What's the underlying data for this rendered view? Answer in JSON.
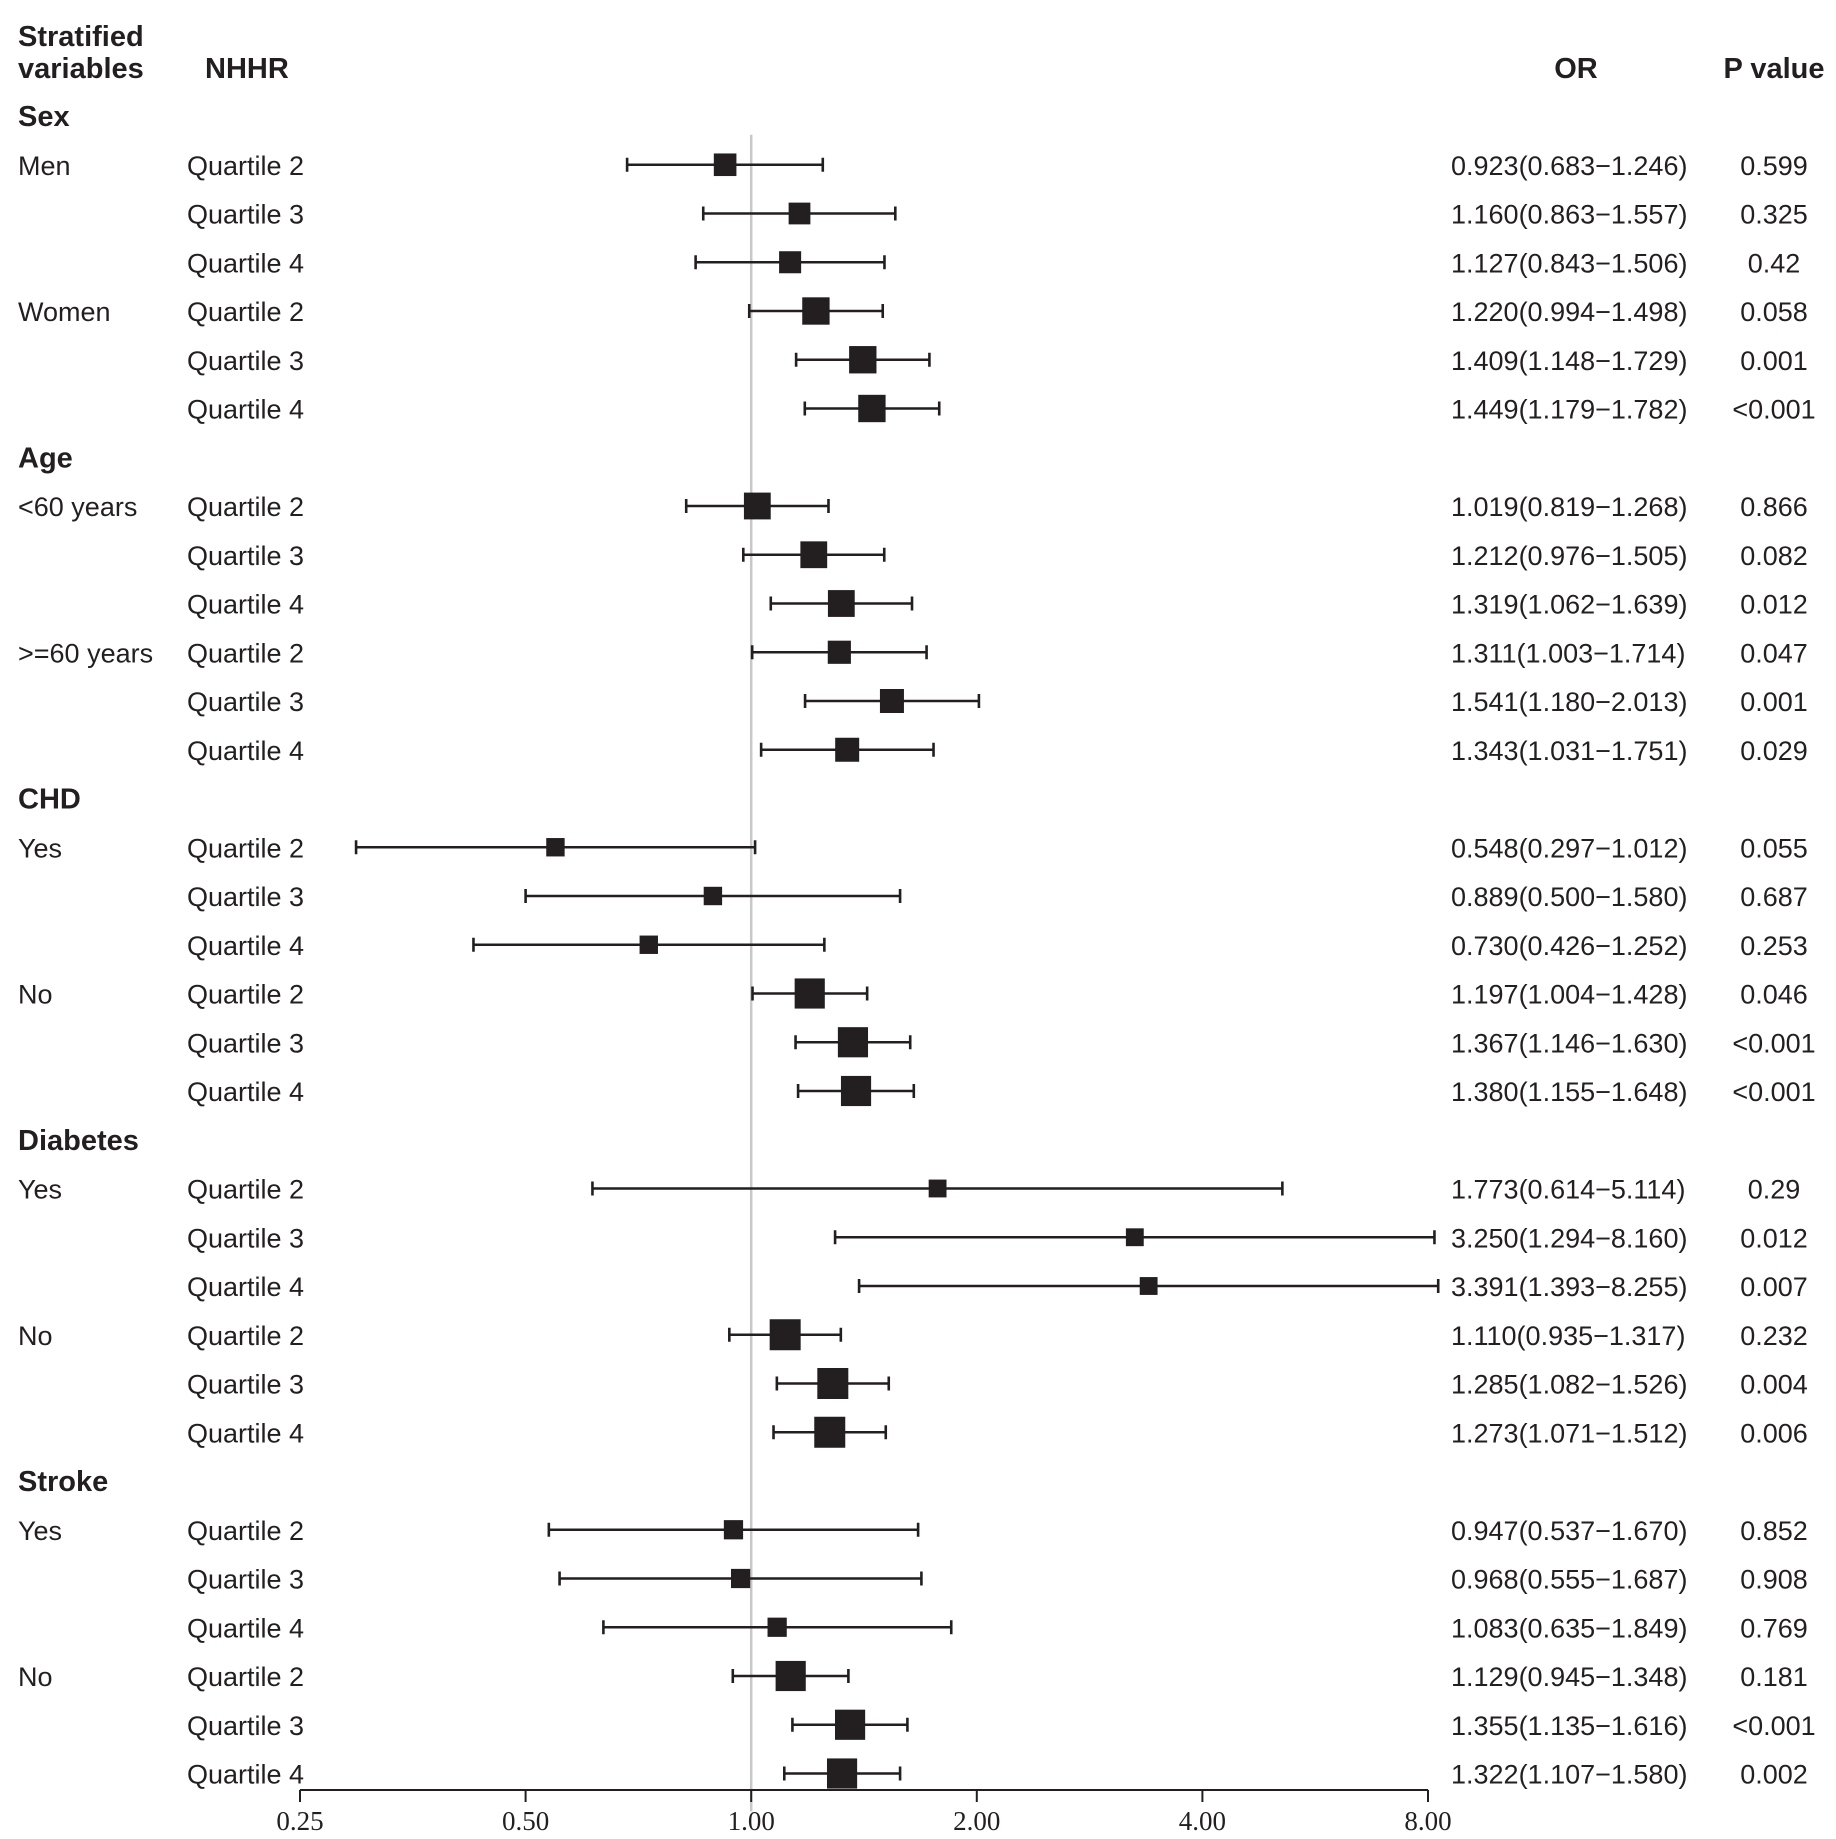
{
  "header": {
    "col1": [
      "Stratified",
      "variables"
    ],
    "col2": "NHHR",
    "col3": "OR",
    "col4": "P value"
  },
  "colors": {
    "marker": "#231f20",
    "reference_line": "#c8c8c8",
    "text": "#231f20"
  },
  "chart_data": {
    "type": "forest",
    "x_scale": "log2",
    "xlim": [
      0.25,
      8.0
    ],
    "x_ticks": [
      "0.25",
      "0.50",
      "1.00",
      "2.00",
      "4.00",
      "8.00"
    ],
    "x_tick_values": [
      0.25,
      0.5,
      1.0,
      2.0,
      4.0,
      8.0
    ],
    "reference_line": 1.0,
    "groups": [
      {
        "label": "Sex",
        "subgroups": [
          {
            "label": "Men",
            "rows": [
              {
                "label": "Quartile 2",
                "or": 0.923,
                "lo": 0.683,
                "hi": 1.246,
                "ci_text": "0.923(0.683−1.246)",
                "p": "0.599",
                "weight": 0.45
              },
              {
                "label": "Quartile 3",
                "or": 1.16,
                "lo": 0.863,
                "hi": 1.557,
                "ci_text": "1.160(0.863−1.557)",
                "p": "0.325",
                "weight": 0.42
              },
              {
                "label": "Quartile 4",
                "or": 1.127,
                "lo": 0.843,
                "hi": 1.506,
                "ci_text": "1.127(0.843−1.506)",
                "p": "0.42",
                "weight": 0.43
              }
            ]
          },
          {
            "label": "Women",
            "rows": [
              {
                "label": "Quartile 2",
                "or": 1.22,
                "lo": 0.994,
                "hi": 1.498,
                "ci_text": "1.220(0.994−1.498)",
                "p": "0.058",
                "weight": 0.62
              },
              {
                "label": "Quartile 3",
                "or": 1.409,
                "lo": 1.148,
                "hi": 1.729,
                "ci_text": "1.409(1.148−1.729)",
                "p": "0.001",
                "weight": 0.62
              },
              {
                "label": "Quartile 4",
                "or": 1.449,
                "lo": 1.179,
                "hi": 1.782,
                "ci_text": "1.449(1.179−1.782)",
                "p": "<0.001",
                "weight": 0.62
              }
            ]
          }
        ]
      },
      {
        "label": "Age",
        "subgroups": [
          {
            "label": "<60 years",
            "rows": [
              {
                "label": "Quartile 2",
                "or": 1.019,
                "lo": 0.819,
                "hi": 1.268,
                "ci_text": "1.019(0.819−1.268)",
                "p": "0.866",
                "weight": 0.6
              },
              {
                "label": "Quartile 3",
                "or": 1.212,
                "lo": 0.976,
                "hi": 1.505,
                "ci_text": "1.212(0.976−1.505)",
                "p": "0.082",
                "weight": 0.6
              },
              {
                "label": "Quartile 4",
                "or": 1.319,
                "lo": 1.062,
                "hi": 1.639,
                "ci_text": "1.319(1.062−1.639)",
                "p": "0.012",
                "weight": 0.6
              }
            ]
          },
          {
            "label": ">=60 years",
            "rows": [
              {
                "label": "Quartile 2",
                "or": 1.311,
                "lo": 1.003,
                "hi": 1.714,
                "ci_text": "1.311(1.003−1.714)",
                "p": "0.047",
                "weight": 0.47
              },
              {
                "label": "Quartile 3",
                "or": 1.541,
                "lo": 1.18,
                "hi": 2.013,
                "ci_text": "1.541(1.180−2.013)",
                "p": "0.001",
                "weight": 0.5
              },
              {
                "label": "Quartile 4",
                "or": 1.343,
                "lo": 1.031,
                "hi": 1.751,
                "ci_text": "1.343(1.031−1.751)",
                "p": "0.029",
                "weight": 0.5
              }
            ]
          }
        ]
      },
      {
        "label": "CHD",
        "subgroups": [
          {
            "label": "Yes",
            "rows": [
              {
                "label": "Quartile 2",
                "or": 0.548,
                "lo": 0.297,
                "hi": 1.012,
                "ci_text": "0.548(0.297−1.012)",
                "p": "0.055",
                "weight": 0.3
              },
              {
                "label": "Quartile 3",
                "or": 0.889,
                "lo": 0.5,
                "hi": 1.58,
                "ci_text": "0.889(0.500−1.580)",
                "p": "0.687",
                "weight": 0.3
              },
              {
                "label": "Quartile 4",
                "or": 0.73,
                "lo": 0.426,
                "hi": 1.252,
                "ci_text": "0.730(0.426−1.252)",
                "p": "0.253",
                "weight": 0.3
              }
            ]
          },
          {
            "label": "No",
            "rows": [
              {
                "label": "Quartile 2",
                "or": 1.197,
                "lo": 1.004,
                "hi": 1.428,
                "ci_text": "1.197(1.004−1.428)",
                "p": "0.046",
                "weight": 0.72
              },
              {
                "label": "Quartile 3",
                "or": 1.367,
                "lo": 1.146,
                "hi": 1.63,
                "ci_text": "1.367(1.146−1.630)",
                "p": "<0.001",
                "weight": 0.72
              },
              {
                "label": "Quartile 4",
                "or": 1.38,
                "lo": 1.155,
                "hi": 1.648,
                "ci_text": "1.380(1.155−1.648)",
                "p": "<0.001",
                "weight": 0.72
              }
            ]
          }
        ]
      },
      {
        "label": "Diabetes",
        "subgroups": [
          {
            "label": "Yes",
            "rows": [
              {
                "label": "Quartile 2",
                "or": 1.773,
                "lo": 0.614,
                "hi": 5.114,
                "ci_text": "1.773(0.614−5.114)",
                "p": "0.29",
                "weight": 0.28
              },
              {
                "label": "Quartile 3",
                "or": 3.25,
                "lo": 1.294,
                "hi": 8.16,
                "ci_text": "3.250(1.294−8.160)",
                "p": "0.012",
                "weight": 0.28
              },
              {
                "label": "Quartile 4",
                "or": 3.391,
                "lo": 1.393,
                "hi": 8.255,
                "ci_text": "3.391(1.393−8.255)",
                "p": "0.007",
                "weight": 0.28
              }
            ]
          },
          {
            "label": "No",
            "rows": [
              {
                "label": "Quartile 2",
                "or": 1.11,
                "lo": 0.935,
                "hi": 1.317,
                "ci_text": "1.110(0.935−1.317)",
                "p": "0.232",
                "weight": 0.75
              },
              {
                "label": "Quartile 3",
                "or": 1.285,
                "lo": 1.082,
                "hi": 1.526,
                "ci_text": "1.285(1.082−1.526)",
                "p": "0.004",
                "weight": 0.75
              },
              {
                "label": "Quartile 4",
                "or": 1.273,
                "lo": 1.071,
                "hi": 1.512,
                "ci_text": "1.273(1.071−1.512)",
                "p": "0.006",
                "weight": 0.75
              }
            ]
          }
        ]
      },
      {
        "label": "Stroke",
        "subgroups": [
          {
            "label": "Yes",
            "rows": [
              {
                "label": "Quartile 2",
                "or": 0.947,
                "lo": 0.537,
                "hi": 1.67,
                "ci_text": "0.947(0.537−1.670)",
                "p": "0.852",
                "weight": 0.33
              },
              {
                "label": "Quartile 3",
                "or": 0.968,
                "lo": 0.555,
                "hi": 1.687,
                "ci_text": "0.968(0.555−1.687)",
                "p": "0.908",
                "weight": 0.33
              },
              {
                "label": "Quartile 4",
                "or": 1.083,
                "lo": 0.635,
                "hi": 1.849,
                "ci_text": "1.083(0.635−1.849)",
                "p": "0.769",
                "weight": 0.33
              }
            ]
          },
          {
            "label": "No",
            "rows": [
              {
                "label": "Quartile 2",
                "or": 1.129,
                "lo": 0.945,
                "hi": 1.348,
                "ci_text": "1.129(0.945−1.348)",
                "p": "0.181",
                "weight": 0.72
              },
              {
                "label": "Quartile 3",
                "or": 1.355,
                "lo": 1.135,
                "hi": 1.616,
                "ci_text": "1.355(1.135−1.616)",
                "p": "<0.001",
                "weight": 0.72
              },
              {
                "label": "Quartile 4",
                "or": 1.322,
                "lo": 1.107,
                "hi": 1.58,
                "ci_text": "1.322(1.107−1.580)",
                "p": "0.002",
                "weight": 0.72
              }
            ]
          }
        ]
      }
    ]
  }
}
